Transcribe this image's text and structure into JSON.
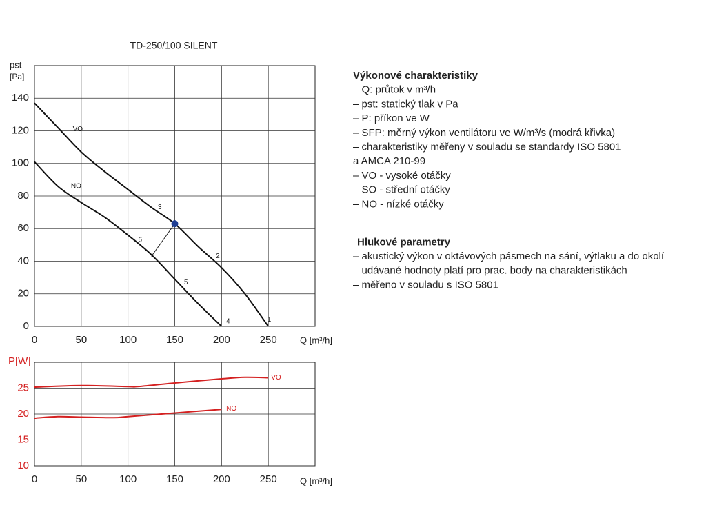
{
  "chart_data": [
    {
      "type": "line",
      "title": "TD-250/100 SILENT",
      "ylabel": "pst",
      "yunit": "[Pa]",
      "xlabel": "Q [m³/h]",
      "xlim": [
        0,
        300
      ],
      "xticks": [
        0,
        50,
        100,
        150,
        200,
        250
      ],
      "ylim": [
        0,
        160
      ],
      "yticks": [
        0,
        20,
        40,
        60,
        80,
        100,
        120,
        140
      ],
      "grid": true,
      "tick_color": "#222222",
      "series": [
        {
          "name": "VO",
          "color": "#111111",
          "label_x": 41,
          "label_y": 121,
          "x": [
            0,
            25,
            50,
            75,
            100,
            125,
            150,
            175,
            200,
            225,
            250
          ],
          "values": [
            137,
            122,
            107,
            95,
            84,
            73,
            63,
            49,
            36,
            20,
            0
          ]
        },
        {
          "name": "NO",
          "color": "#111111",
          "label_x": 39,
          "label_y": 86,
          "x": [
            0,
            25,
            50,
            75,
            100,
            125,
            150,
            175,
            200
          ],
          "values": [
            101,
            86,
            76,
            67,
            56,
            44,
            29,
            14,
            0
          ]
        }
      ],
      "marker": {
        "x": 150,
        "y": 63,
        "color": "#1f3f94"
      },
      "connector": {
        "x": 125,
        "y": 43
      },
      "annotations": [
        {
          "text": "1",
          "x": 251,
          "y": 4
        },
        {
          "text": "2",
          "x": 196,
          "y": 43
        },
        {
          "text": "3",
          "x": 134,
          "y": 73
        },
        {
          "text": "4",
          "x": 207,
          "y": 3
        },
        {
          "text": "5",
          "x": 162,
          "y": 27
        },
        {
          "text": "6",
          "x": 113,
          "y": 53
        }
      ]
    },
    {
      "type": "line",
      "ylabel": "P[W]",
      "xlabel": "Q [m³/h]",
      "xlim": [
        0,
        300
      ],
      "xticks": [
        0,
        50,
        100,
        150,
        200,
        250
      ],
      "ylim": [
        10,
        30
      ],
      "yticks": [
        10,
        15,
        20,
        25
      ],
      "grid": true,
      "tick_color": "#d42020",
      "series": [
        {
          "name": "VO",
          "color": "#d42020",
          "label_x": 253,
          "label_y": 27,
          "x": [
            0,
            50,
            100,
            110,
            150,
            200,
            225,
            250
          ],
          "values": [
            25.2,
            25.5,
            25.3,
            25.3,
            26,
            26.8,
            27.1,
            27
          ]
        },
        {
          "name": "NO",
          "color": "#d42020",
          "label_x": 205,
          "label_y": 21,
          "x": [
            0,
            25,
            50,
            85,
            100,
            150,
            200
          ],
          "values": [
            19.2,
            19.5,
            19.4,
            19.3,
            19.5,
            20.2,
            20.9
          ]
        }
      ]
    }
  ],
  "legend_text": {
    "title1": "Výkonové charakteristiky",
    "items1": [
      "– Q: průtok v m³/h",
      "– pst: statický tlak v Pa",
      "– P: příkon ve W",
      "– SFP: měrný výkon ventilátoru ve W/m³/s (modrá křivka)",
      "– charakteristiky měřeny v souladu se standardy ISO 5801",
      "   a AMCA 210-99",
      "– VO - vysoké otáčky",
      "– SO - střední otáčky",
      "– NO - nízké otáčky"
    ],
    "title2": "Hlukové parametry",
    "items2": [
      "– akustický výkon v oktávových pásmech na sání, výtlaku a do okolí",
      "– udávané hodnoty platí pro prac. body na charakteristikách",
      "– měřeno v souladu s ISO 5801"
    ]
  }
}
